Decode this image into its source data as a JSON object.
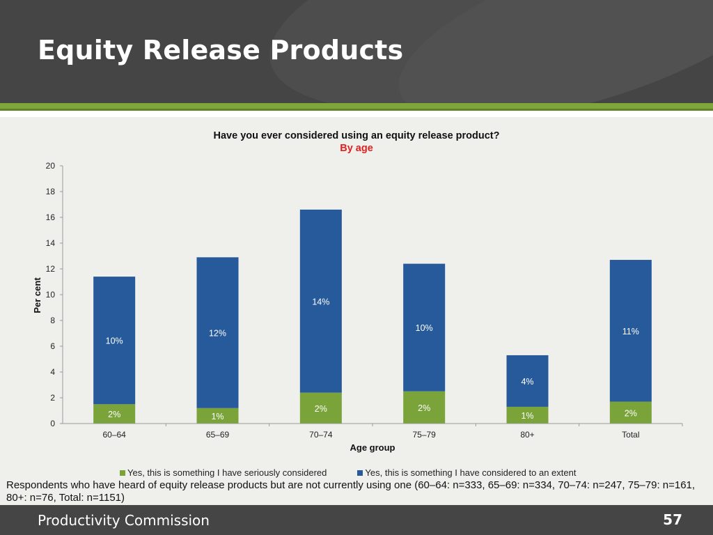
{
  "slide": {
    "title": "Equity Release Products",
    "footer_org": "Productivity Commission",
    "page_number": "57",
    "footnote": "Respondents who have heard of equity release products but are not currently using one (60–64: n=333, 65–69: n=334, 70–74: n=247, 75–79: n=161, 80+: n=76, Total: n=1151)"
  },
  "colors": {
    "header_bg": "#454545",
    "accent_green": "#7ea63a",
    "series_seriously": "#7aa33a",
    "series_extent": "#265a9a",
    "subtitle_red": "#e02020"
  },
  "chart_data": {
    "type": "bar",
    "stacked": true,
    "title": "Have you ever considered using an equity release product?",
    "subtitle": "By age",
    "xlabel": "Age group",
    "ylabel": "Per cent",
    "ylim": [
      0,
      20
    ],
    "yticks": [
      0,
      2,
      4,
      6,
      8,
      10,
      12,
      14,
      16,
      18,
      20
    ],
    "grid": false,
    "legend_position": "bottom",
    "categories": [
      "60–64",
      "65–69",
      "70–74",
      "75–79",
      "80+",
      "Total"
    ],
    "series": [
      {
        "name": "Yes, this is something I have seriously considered",
        "values": [
          1.5,
          1.2,
          2.4,
          2.5,
          1.3,
          1.7
        ],
        "labels": [
          "2%",
          "1%",
          "2%",
          "2%",
          "1%",
          "2%"
        ]
      },
      {
        "name": "Yes, this is something I have considered to an extent",
        "values": [
          9.9,
          11.7,
          14.2,
          9.9,
          4.0,
          11.0
        ],
        "labels": [
          "10%",
          "12%",
          "14%",
          "10%",
          "4%",
          "11%"
        ]
      }
    ]
  }
}
